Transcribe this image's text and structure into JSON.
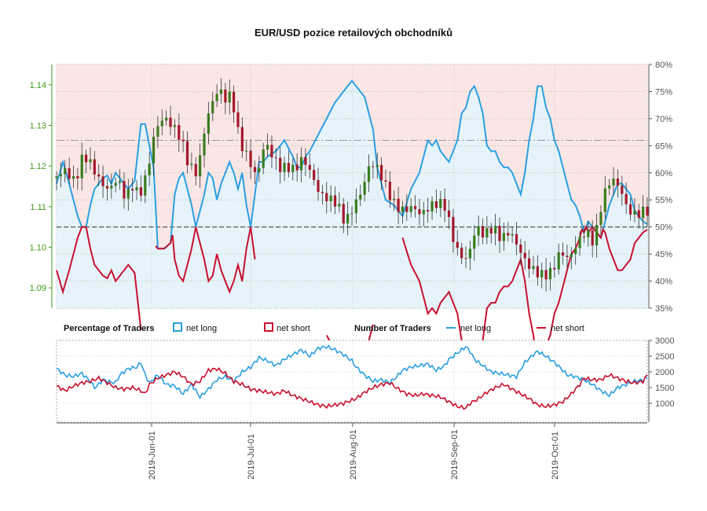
{
  "chart_data": {
    "type": "candlestick",
    "title": "EUR/USD pozice retailových obchodníků",
    "price_axis": {
      "ticks": [
        "1.09",
        "1.10",
        "1.11",
        "1.12",
        "1.13",
        "1.14"
      ],
      "range": [
        1.085,
        1.145
      ]
    },
    "pct_axis": {
      "ticks": [
        "35%",
        "40%",
        "45%",
        "50%",
        "55%",
        "60%",
        "65%",
        "70%",
        "75%",
        "80%"
      ],
      "range": [
        35,
        80
      ]
    },
    "count_axis": {
      "ticks": [
        "1000",
        "1500",
        "2000",
        "2500",
        "3000"
      ],
      "range": [
        400,
        3000
      ]
    },
    "date_labels": [
      "2019-Jun-01",
      "2019-Jul-01",
      "2019-Aug-01",
      "2019-Sep-01",
      "2019-Oct-01"
    ],
    "reference_lines": {
      "pct_50": 50,
      "pct_dashdot": 66
    },
    "legend": {
      "pct_title": "Percentage of Traders",
      "pct_long": "net long",
      "pct_short": "net short",
      "num_title": "Number of Traders",
      "num_long": "net long",
      "num_short": "net short"
    },
    "series_colors": {
      "long": "#2b9fe0",
      "short": "#c8102e",
      "up": "#3a7d1e",
      "down": "#a5182b"
    },
    "price_path": [
      [
        0,
        1.117
      ],
      [
        5,
        1.119
      ],
      [
        10,
        1.116
      ],
      [
        14,
        1.123
      ],
      [
        18,
        1.12
      ],
      [
        22,
        1.116
      ],
      [
        26,
        1.114
      ],
      [
        30,
        1.117
      ],
      [
        34,
        1.112
      ],
      [
        38,
        1.116
      ],
      [
        40,
        1.112
      ],
      [
        44,
        1.118
      ],
      [
        48,
        1.129
      ],
      [
        52,
        1.132
      ],
      [
        56,
        1.13
      ],
      [
        60,
        1.127
      ],
      [
        64,
        1.12
      ],
      [
        68,
        1.118
      ],
      [
        72,
        1.131
      ],
      [
        76,
        1.137
      ],
      [
        78,
        1.139
      ],
      [
        82,
        1.136
      ],
      [
        84,
        1.138
      ],
      [
        88,
        1.126
      ],
      [
        92,
        1.122
      ],
      [
        96,
        1.117
      ],
      [
        100,
        1.126
      ],
      [
        104,
        1.122
      ],
      [
        108,
        1.119
      ],
      [
        110,
        1.12
      ],
      [
        114,
        1.119
      ],
      [
        118,
        1.122
      ],
      [
        122,
        1.118
      ],
      [
        126,
        1.113
      ],
      [
        130,
        1.112
      ],
      [
        134,
        1.111
      ],
      [
        138,
        1.106
      ],
      [
        142,
        1.11
      ],
      [
        146,
        1.114
      ],
      [
        150,
        1.121
      ],
      [
        154,
        1.119
      ],
      [
        158,
        1.114
      ],
      [
        162,
        1.11
      ],
      [
        166,
        1.109
      ],
      [
        170,
        1.11
      ],
      [
        174,
        1.108
      ],
      [
        178,
        1.11
      ],
      [
        182,
        1.111
      ],
      [
        186,
        1.11
      ],
      [
        188,
        1.104
      ],
      [
        192,
        1.098
      ],
      [
        196,
        1.097
      ],
      [
        200,
        1.105
      ],
      [
        204,
        1.103
      ],
      [
        208,
        1.105
      ],
      [
        212,
        1.102
      ],
      [
        216,
        1.104
      ],
      [
        220,
        1.1
      ],
      [
        224,
        1.096
      ],
      [
        228,
        1.094
      ],
      [
        232,
        1.093
      ],
      [
        236,
        1.094
      ],
      [
        240,
        1.099
      ],
      [
        244,
        1.097
      ],
      [
        248,
        1.101
      ],
      [
        252,
        1.104
      ],
      [
        256,
        1.101
      ],
      [
        260,
        1.112
      ],
      [
        264,
        1.117
      ],
      [
        268,
        1.115
      ],
      [
        272,
        1.109
      ],
      [
        276,
        1.108
      ],
      [
        280,
        1.109
      ]
    ],
    "pct_long_path": [
      [
        0,
        58
      ],
      [
        3,
        62
      ],
      [
        6,
        58
      ],
      [
        8,
        55
      ],
      [
        10,
        52
      ],
      [
        12,
        50
      ],
      [
        14,
        50
      ],
      [
        16,
        54
      ],
      [
        18,
        57
      ],
      [
        20,
        58
      ],
      [
        22,
        59
      ],
      [
        24,
        59.5
      ],
      [
        26,
        58
      ],
      [
        28,
        60
      ],
      [
        30,
        59
      ],
      [
        32,
        58
      ],
      [
        34,
        57
      ],
      [
        37,
        58.5
      ],
      [
        40,
        69
      ],
      [
        42,
        69
      ],
      [
        44,
        65
      ],
      [
        46,
        61
      ],
      [
        48,
        46
      ],
      [
        51,
        46
      ],
      [
        54,
        47
      ],
      [
        56,
        56
      ],
      [
        58,
        59
      ],
      [
        60,
        60
      ],
      [
        62,
        57
      ],
      [
        64,
        54
      ],
      [
        66,
        50
      ],
      [
        70,
        56
      ],
      [
        72,
        60
      ],
      [
        74,
        59
      ],
      [
        76,
        55
      ],
      [
        78,
        58
      ],
      [
        80,
        60
      ],
      [
        82,
        62
      ],
      [
        84,
        60
      ],
      [
        86,
        57
      ],
      [
        88,
        60
      ],
      [
        90,
        54
      ],
      [
        92,
        50
      ],
      [
        94,
        56
      ],
      [
        96,
        62
      ],
      [
        98,
        62
      ],
      [
        100,
        63
      ],
      [
        104,
        64
      ],
      [
        108,
        66
      ],
      [
        112,
        63
      ],
      [
        114,
        61
      ],
      [
        116,
        61
      ],
      [
        118,
        63
      ],
      [
        120,
        64
      ],
      [
        124,
        67
      ],
      [
        128,
        70
      ],
      [
        132,
        73
      ],
      [
        136,
        75
      ],
      [
        140,
        77
      ],
      [
        142,
        76
      ],
      [
        146,
        74
      ],
      [
        148,
        71
      ],
      [
        150,
        68
      ],
      [
        152,
        61
      ],
      [
        156,
        55
      ],
      [
        160,
        54
      ],
      [
        164,
        52
      ],
      [
        168,
        57
      ],
      [
        172,
        60
      ],
      [
        174,
        63
      ],
      [
        176,
        66
      ],
      [
        178,
        65
      ],
      [
        180,
        66
      ],
      [
        182,
        64
      ],
      [
        184,
        63
      ],
      [
        186,
        62
      ],
      [
        190,
        66
      ],
      [
        192,
        71
      ],
      [
        194,
        72
      ],
      [
        196,
        75
      ],
      [
        198,
        76
      ],
      [
        200,
        74
      ],
      [
        202,
        71
      ],
      [
        204,
        65
      ],
      [
        206,
        64
      ],
      [
        208,
        64
      ],
      [
        210,
        62
      ],
      [
        212,
        61
      ],
      [
        214,
        61
      ],
      [
        216,
        60
      ],
      [
        218,
        58
      ],
      [
        220,
        56
      ],
      [
        222,
        60
      ],
      [
        224,
        66
      ],
      [
        226,
        70
      ],
      [
        228,
        76
      ],
      [
        230,
        76
      ],
      [
        232,
        72
      ],
      [
        234,
        70
      ],
      [
        236,
        66
      ],
      [
        238,
        64
      ],
      [
        240,
        61
      ],
      [
        242,
        58
      ],
      [
        244,
        55
      ],
      [
        246,
        54
      ],
      [
        248,
        52
      ],
      [
        250,
        49
      ],
      [
        252,
        51
      ],
      [
        254,
        50
      ],
      [
        256,
        49
      ],
      [
        258,
        48
      ],
      [
        260,
        51
      ],
      [
        262,
        54
      ],
      [
        264,
        56
      ],
      [
        266,
        58
      ],
      [
        268,
        58
      ],
      [
        270,
        57
      ],
      [
        272,
        56
      ],
      [
        274,
        53
      ],
      [
        276,
        52
      ],
      [
        278,
        51
      ],
      [
        280,
        50.5
      ]
    ],
    "count_long_path": [
      [
        0,
        2100
      ],
      [
        4,
        1900
      ],
      [
        8,
        1850
      ],
      [
        12,
        1950
      ],
      [
        16,
        1700
      ],
      [
        18,
        1500
      ],
      [
        20,
        1600
      ],
      [
        22,
        1750
      ],
      [
        24,
        1700
      ],
      [
        28,
        1650
      ],
      [
        30,
        1900
      ],
      [
        34,
        2100
      ],
      [
        38,
        2150
      ],
      [
        40,
        2300
      ],
      [
        42,
        1900
      ],
      [
        44,
        1650
      ],
      [
        48,
        1900
      ],
      [
        52,
        1600
      ],
      [
        56,
        1550
      ],
      [
        60,
        1300
      ],
      [
        64,
        1600
      ],
      [
        68,
        1200
      ],
      [
        72,
        1450
      ],
      [
        76,
        1750
      ],
      [
        80,
        1850
      ],
      [
        84,
        1700
      ],
      [
        88,
        2000
      ],
      [
        92,
        2150
      ],
      [
        96,
        2450
      ],
      [
        100,
        2350
      ],
      [
        104,
        2200
      ],
      [
        108,
        2400
      ],
      [
        112,
        2550
      ],
      [
        116,
        2700
      ],
      [
        120,
        2500
      ],
      [
        124,
        2750
      ],
      [
        128,
        2800
      ],
      [
        132,
        2700
      ],
      [
        136,
        2550
      ],
      [
        140,
        2350
      ],
      [
        142,
        2150
      ],
      [
        146,
        1900
      ],
      [
        150,
        1700
      ],
      [
        154,
        1750
      ],
      [
        158,
        1650
      ],
      [
        162,
        1900
      ],
      [
        164,
        2050
      ],
      [
        168,
        2150
      ],
      [
        172,
        2200
      ],
      [
        176,
        2250
      ],
      [
        180,
        2050
      ],
      [
        184,
        2200
      ],
      [
        186,
        2400
      ],
      [
        190,
        2600
      ],
      [
        194,
        2800
      ],
      [
        196,
        2650
      ],
      [
        198,
        2400
      ],
      [
        202,
        2200
      ],
      [
        206,
        2000
      ],
      [
        210,
        1950
      ],
      [
        214,
        1900
      ],
      [
        218,
        1850
      ],
      [
        222,
        2300
      ],
      [
        226,
        2550
      ],
      [
        228,
        2650
      ],
      [
        232,
        2500
      ],
      [
        236,
        2300
      ],
      [
        240,
        2050
      ],
      [
        242,
        1900
      ],
      [
        246,
        1850
      ],
      [
        250,
        1750
      ],
      [
        254,
        1600
      ],
      [
        258,
        1400
      ],
      [
        262,
        1250
      ],
      [
        266,
        1500
      ],
      [
        270,
        1600
      ],
      [
        274,
        1700
      ],
      [
        278,
        1750
      ],
      [
        280,
        1800
      ]
    ],
    "count_short_path": [
      [
        0,
        1550
      ],
      [
        4,
        1400
      ],
      [
        8,
        1550
      ],
      [
        12,
        1650
      ],
      [
        16,
        1700
      ],
      [
        20,
        1800
      ],
      [
        24,
        1650
      ],
      [
        28,
        1500
      ],
      [
        32,
        1450
      ],
      [
        36,
        1500
      ],
      [
        40,
        1400
      ],
      [
        42,
        1300
      ],
      [
        44,
        1600
      ],
      [
        48,
        1800
      ],
      [
        52,
        1900
      ],
      [
        56,
        2000
      ],
      [
        60,
        1850
      ],
      [
        64,
        1600
      ],
      [
        68,
        1700
      ],
      [
        72,
        2050
      ],
      [
        76,
        2100
      ],
      [
        80,
        1950
      ],
      [
        84,
        1700
      ],
      [
        88,
        1600
      ],
      [
        92,
        1450
      ],
      [
        96,
        1400
      ],
      [
        100,
        1350
      ],
      [
        104,
        1300
      ],
      [
        108,
        1400
      ],
      [
        112,
        1250
      ],
      [
        116,
        1150
      ],
      [
        120,
        1050
      ],
      [
        124,
        950
      ],
      [
        128,
        900
      ],
      [
        132,
        950
      ],
      [
        136,
        1000
      ],
      [
        140,
        1100
      ],
      [
        142,
        1150
      ],
      [
        146,
        1350
      ],
      [
        150,
        1500
      ],
      [
        154,
        1600
      ],
      [
        158,
        1650
      ],
      [
        162,
        1450
      ],
      [
        166,
        1300
      ],
      [
        170,
        1250
      ],
      [
        174,
        1300
      ],
      [
        178,
        1250
      ],
      [
        182,
        1200
      ],
      [
        186,
        1050
      ],
      [
        190,
        900
      ],
      [
        194,
        850
      ],
      [
        196,
        1000
      ],
      [
        200,
        1150
      ],
      [
        204,
        1350
      ],
      [
        208,
        1500
      ],
      [
        212,
        1600
      ],
      [
        216,
        1450
      ],
      [
        220,
        1300
      ],
      [
        224,
        1150
      ],
      [
        228,
        950
      ],
      [
        232,
        900
      ],
      [
        236,
        950
      ],
      [
        240,
        1050
      ],
      [
        244,
        1300
      ],
      [
        248,
        1600
      ],
      [
        250,
        1800
      ],
      [
        254,
        1750
      ],
      [
        258,
        1750
      ],
      [
        262,
        1900
      ],
      [
        266,
        1800
      ],
      [
        270,
        1700
      ],
      [
        274,
        1650
      ],
      [
        278,
        1700
      ],
      [
        280,
        1900
      ]
    ],
    "pct_short_gaps": [
      [
        40,
        47
      ],
      [
        94,
        128
      ],
      [
        150,
        164
      ]
    ]
  }
}
